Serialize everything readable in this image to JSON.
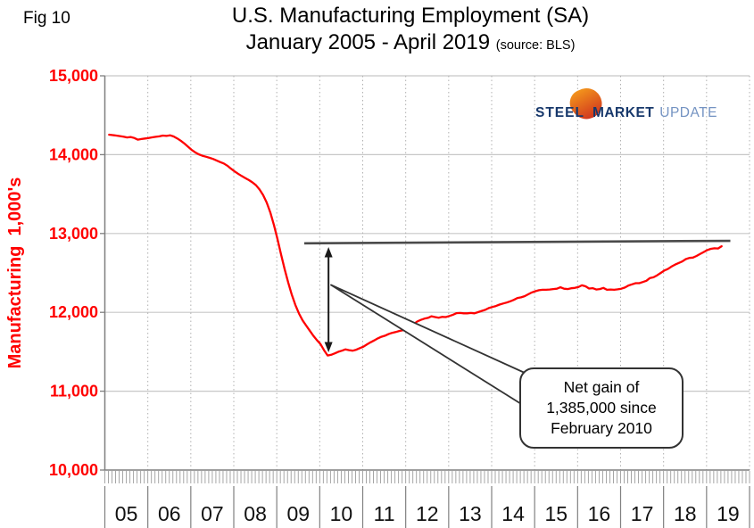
{
  "fig_label": "Fig 10",
  "logo": {
    "words": [
      "STEEL",
      "MARKET",
      "UPDATE"
    ],
    "colors": {
      "steel": "#17386B",
      "market": "#17386B",
      "update": "#7493C2",
      "crescent_from": "#F9A51B",
      "crescent_to": "#D23A1E"
    }
  },
  "chart_data": {
    "type": "line",
    "title": "U.S. Manufacturing Employment (SA)",
    "subtitle": "January 2005 - April 2019",
    "source_note": "(source: BLS)",
    "ylabel": "Manufacturing  1,000's",
    "ylim": [
      10000,
      15000
    ],
    "y_ticks": [
      {
        "value": 10000,
        "label": "10,000"
      },
      {
        "value": 11000,
        "label": "11,000"
      },
      {
        "value": 12000,
        "label": "12,000"
      },
      {
        "value": 13000,
        "label": "13,000"
      },
      {
        "value": 14000,
        "label": "14,000"
      },
      {
        "value": 15000,
        "label": "15,000"
      }
    ],
    "x_tick_labels": [
      "05",
      "06",
      "07",
      "08",
      "09",
      "10",
      "11",
      "12",
      "13",
      "14",
      "15",
      "16",
      "17",
      "18",
      "19"
    ],
    "x_range": {
      "start": "2005-01",
      "end": "2019-04"
    },
    "grid": {
      "horizontal": "solid",
      "vertical": "dotted-yearly",
      "minor_x_ticks": "monthly"
    },
    "line_color": "#FF0000",
    "series": [
      {
        "name": "U.S. manufacturing employment (thousands, SA)",
        "color": "#FF0000",
        "frequency": "monthly",
        "start": "2005-01",
        "values": [
          14253,
          14248,
          14242,
          14235,
          14228,
          14218,
          14224,
          14212,
          14190,
          14198,
          14205,
          14212,
          14220,
          14226,
          14232,
          14242,
          14237,
          14246,
          14231,
          14206,
          14176,
          14141,
          14102,
          14062,
          14030,
          14004,
          13986,
          13974,
          13960,
          13946,
          13926,
          13906,
          13888,
          13860,
          13822,
          13788,
          13758,
          13730,
          13704,
          13678,
          13648,
          13612,
          13558,
          13488,
          13392,
          13268,
          13108,
          12928,
          12733,
          12548,
          12378,
          12224,
          12094,
          11984,
          11898,
          11833,
          11768,
          11704,
          11648,
          11598,
          11520,
          11453,
          11462,
          11480,
          11500,
          11514,
          11530,
          11520,
          11514,
          11526,
          11546,
          11564,
          11594,
          11620,
          11644,
          11670,
          11690,
          11704,
          11724,
          11740,
          11750,
          11764,
          11774,
          11784,
          11820,
          11850,
          11884,
          11904,
          11920,
          11930,
          11950,
          11940,
          11932,
          11942,
          11940,
          11954,
          11970,
          11990,
          11992,
          11988,
          11988,
          11992,
          11988,
          12002,
          12018,
          12032,
          12054,
          12068,
          12080,
          12098,
          12112,
          12124,
          12140,
          12158,
          12182,
          12190,
          12205,
          12228,
          12252,
          12268,
          12280,
          12286,
          12286,
          12290,
          12295,
          12300,
          12318,
          12300,
          12295,
          12305,
          12310,
          12320,
          12343,
          12330,
          12302,
          12306,
          12290,
          12295,
          12310,
          12286,
          12290,
          12286,
          12292,
          12300,
          12315,
          12340,
          12355,
          12370,
          12370,
          12385,
          12400,
          12435,
          12445,
          12470,
          12500,
          12530,
          12550,
          12580,
          12605,
          12625,
          12645,
          12675,
          12690,
          12695,
          12715,
          12740,
          12765,
          12790,
          12805,
          12812,
          12810,
          12838
        ]
      }
    ],
    "annotations": {
      "callout_lines": [
        "Net gain of",
        "1,385,000 since",
        "February 2010"
      ],
      "net_gain_thousands": 1385,
      "trough": {
        "label": "February 2010",
        "value": 11453
      },
      "latest": {
        "label": "April 2019",
        "value": 12838
      },
      "level_line_value": 12890
    }
  }
}
